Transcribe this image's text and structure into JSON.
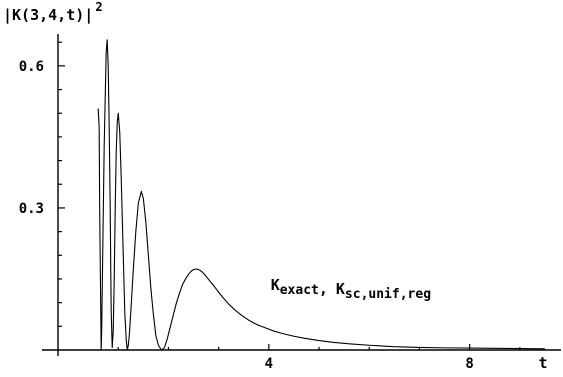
{
  "chart_data": {
    "type": "line",
    "title": "",
    "ylabel": {
      "base": "|K(3,4,t)|",
      "sup": "2"
    },
    "xlabel": "t",
    "xlim": [
      -0.2,
      9.8
    ],
    "ylim": [
      0,
      0.68
    ],
    "x_ticks": [
      {
        "value": 4,
        "label": "4"
      },
      {
        "value": 8,
        "label": "8"
      }
    ],
    "y_ticks": [
      {
        "value": 0.3,
        "label": "0.3"
      },
      {
        "value": 0.6,
        "label": "0.6"
      }
    ],
    "annotation": {
      "parts": [
        {
          "text": "K",
          "sub": "exact"
        },
        {
          "text": ",",
          "sub": ""
        },
        {
          "text": "K",
          "sub": "sc,unif,reg"
        }
      ],
      "anchor_data": [
        3.3,
        0.135
      ]
    },
    "series": [
      {
        "x": [
          0.6,
          0.62,
          0.63,
          0.66,
          0.67,
          0.68,
          0.72,
          0.76,
          0.78,
          0.8,
          0.82,
          0.84,
          0.85,
          0.86,
          0.88,
          0.9,
          0.92,
          0.94,
          0.96,
          0.98,
          1.0,
          1.03,
          1.06,
          1.1,
          1.13,
          1.16,
          1.18,
          1.2,
          1.22,
          1.25,
          1.3,
          1.35,
          1.4,
          1.46,
          1.5,
          1.55,
          1.6,
          1.65,
          1.7,
          1.75,
          1.8,
          1.86,
          1.92,
          1.98,
          2.04,
          2.1,
          2.16,
          2.22,
          2.28,
          2.34,
          2.4,
          2.45,
          2.5,
          2.56,
          2.62,
          2.68,
          2.74,
          2.8,
          2.9,
          3.0,
          3.1,
          3.2,
          3.3,
          3.4,
          3.5,
          3.6,
          3.7,
          3.8,
          3.9,
          4.0,
          4.1,
          4.2,
          4.3,
          4.5,
          4.7,
          5.0,
          5.3,
          5.6,
          6.0,
          6.5,
          7.0,
          7.5,
          8.0,
          8.5,
          9.0,
          9.5
        ],
        "y": [
          0.51,
          0.47,
          0.3,
          0.0,
          0.04,
          0.12,
          0.43,
          0.63,
          0.655,
          0.6,
          0.47,
          0.3,
          0.18,
          0.08,
          0.005,
          0.04,
          0.15,
          0.3,
          0.42,
          0.48,
          0.5,
          0.46,
          0.36,
          0.2,
          0.08,
          0.02,
          0.0,
          0.01,
          0.03,
          0.08,
          0.17,
          0.25,
          0.31,
          0.335,
          0.32,
          0.27,
          0.2,
          0.13,
          0.075,
          0.03,
          0.01,
          0.0,
          0.005,
          0.025,
          0.05,
          0.075,
          0.1,
          0.12,
          0.138,
          0.15,
          0.16,
          0.166,
          0.17,
          0.171,
          0.169,
          0.164,
          0.157,
          0.149,
          0.136,
          0.122,
          0.109,
          0.097,
          0.087,
          0.078,
          0.07,
          0.063,
          0.057,
          0.052,
          0.048,
          0.044,
          0.04,
          0.037,
          0.034,
          0.029,
          0.025,
          0.02,
          0.016,
          0.013,
          0.01,
          0.007,
          0.0055,
          0.0045,
          0.004,
          0.0035,
          0.003,
          0.0025
        ]
      }
    ],
    "grid": false,
    "legend": "none"
  }
}
